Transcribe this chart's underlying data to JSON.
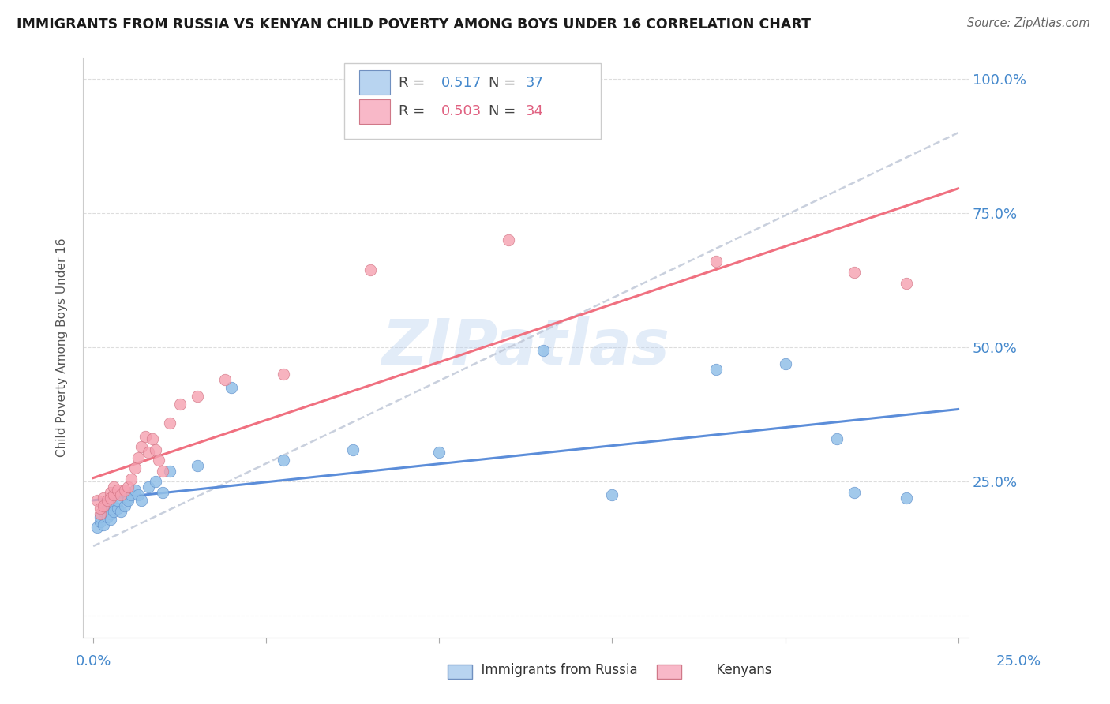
{
  "title": "IMMIGRANTS FROM RUSSIA VS KENYAN CHILD POVERTY AMONG BOYS UNDER 16 CORRELATION CHART",
  "source": "Source: ZipAtlas.com",
  "ylabel": "Child Poverty Among Boys Under 16",
  "blue_color": "#92C0E8",
  "pink_color": "#F5A0B0",
  "blue_line_color": "#5B8DD9",
  "pink_line_color": "#F07080",
  "dashed_line_color": "#C0C8D8",
  "legend_R1": "0.517",
  "legend_N1": "37",
  "legend_R2": "0.503",
  "legend_N2": "34",
  "watermark": "ZIPatlas",
  "blue_scatter_x": [
    0.001,
    0.002,
    0.002,
    0.003,
    0.003,
    0.004,
    0.004,
    0.005,
    0.005,
    0.006,
    0.006,
    0.007,
    0.007,
    0.008,
    0.009,
    0.01,
    0.01,
    0.011,
    0.012,
    0.013,
    0.014,
    0.016,
    0.018,
    0.02,
    0.022,
    0.03,
    0.04,
    0.055,
    0.075,
    0.1,
    0.13,
    0.15,
    0.18,
    0.2,
    0.215,
    0.22,
    0.235
  ],
  "blue_scatter_y": [
    0.165,
    0.175,
    0.185,
    0.195,
    0.17,
    0.2,
    0.185,
    0.19,
    0.18,
    0.205,
    0.195,
    0.2,
    0.215,
    0.195,
    0.205,
    0.22,
    0.215,
    0.225,
    0.235,
    0.225,
    0.215,
    0.24,
    0.25,
    0.23,
    0.27,
    0.28,
    0.425,
    0.29,
    0.31,
    0.305,
    0.495,
    0.225,
    0.46,
    0.47,
    0.33,
    0.23,
    0.22
  ],
  "pink_scatter_x": [
    0.001,
    0.002,
    0.002,
    0.003,
    0.003,
    0.004,
    0.005,
    0.005,
    0.006,
    0.006,
    0.007,
    0.008,
    0.009,
    0.01,
    0.011,
    0.012,
    0.013,
    0.014,
    0.015,
    0.016,
    0.017,
    0.018,
    0.019,
    0.02,
    0.022,
    0.025,
    0.03,
    0.038,
    0.055,
    0.08,
    0.12,
    0.18,
    0.22,
    0.235
  ],
  "pink_scatter_y": [
    0.215,
    0.19,
    0.2,
    0.22,
    0.205,
    0.215,
    0.23,
    0.22,
    0.225,
    0.24,
    0.235,
    0.225,
    0.235,
    0.24,
    0.255,
    0.275,
    0.295,
    0.315,
    0.335,
    0.305,
    0.33,
    0.31,
    0.29,
    0.27,
    0.36,
    0.395,
    0.41,
    0.44,
    0.45,
    0.645,
    0.7,
    0.66,
    0.64,
    0.62
  ],
  "xlim": [
    0.0,
    0.25
  ],
  "ylim": [
    0.0,
    1.0
  ],
  "xticks": [
    0.0,
    0.05,
    0.1,
    0.15,
    0.2,
    0.25
  ],
  "yticks": [
    0.0,
    0.25,
    0.5,
    0.75,
    1.0
  ]
}
